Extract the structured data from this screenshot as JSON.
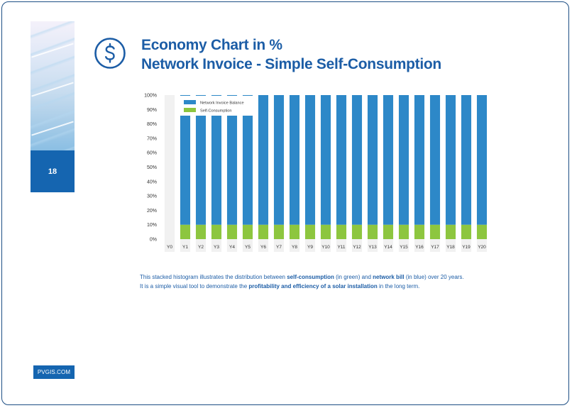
{
  "page": {
    "number": "18",
    "site": "PVGIS.COM"
  },
  "header": {
    "title_line1": "Economy Chart in %",
    "title_line2": "Network Invoice - Simple Self-Consumption",
    "icon": "dollar-circle-icon"
  },
  "colors": {
    "accent": "#1c5da6",
    "sidebar": "#1565b0",
    "network_bar": "#2d88c8",
    "self_bar": "#8dc63f"
  },
  "caption": {
    "l1_a": "This stacked histogram illustrates the distribution between ",
    "l1_b": "self-consumption",
    "l1_c": " (in green) and ",
    "l1_d": "network bill",
    "l1_e": " (in blue) over 20 years.",
    "l2_a": "It is a simple visual tool to demonstrate the ",
    "l2_b": "profitability and efficiency of a solar installation",
    "l2_c": " in the long term."
  },
  "chart_data": {
    "type": "bar",
    "stacked": true,
    "title": "",
    "xlabel": "",
    "ylabel": "",
    "ylim": [
      0,
      100
    ],
    "y_ticks": [
      "0%",
      "10%",
      "20%",
      "30%",
      "40%",
      "50%",
      "60%",
      "70%",
      "80%",
      "90%",
      "100%"
    ],
    "categories": [
      "Y0",
      "Y1",
      "Y2",
      "Y3",
      "Y4",
      "Y5",
      "Y6",
      "Y7",
      "Y8",
      "Y9",
      "Y10",
      "Y11",
      "Y12",
      "Y13",
      "Y14",
      "Y15",
      "Y16",
      "Y17",
      "Y18",
      "Y19",
      "Y20"
    ],
    "series": [
      {
        "name": "Self-Consumption",
        "color": "#8dc63f",
        "values": [
          0,
          10,
          10,
          10,
          10,
          10,
          10,
          10,
          10,
          10,
          10,
          10,
          10,
          10,
          10,
          10,
          10,
          10,
          10,
          10,
          10
        ]
      },
      {
        "name": "Network Invoice Balance",
        "color": "#2d88c8",
        "values": [
          0,
          90,
          90,
          90,
          90,
          90,
          90,
          90,
          90,
          90,
          90,
          90,
          90,
          90,
          90,
          90,
          90,
          90,
          90,
          90,
          90
        ]
      }
    ],
    "legend_position": "top-left"
  }
}
